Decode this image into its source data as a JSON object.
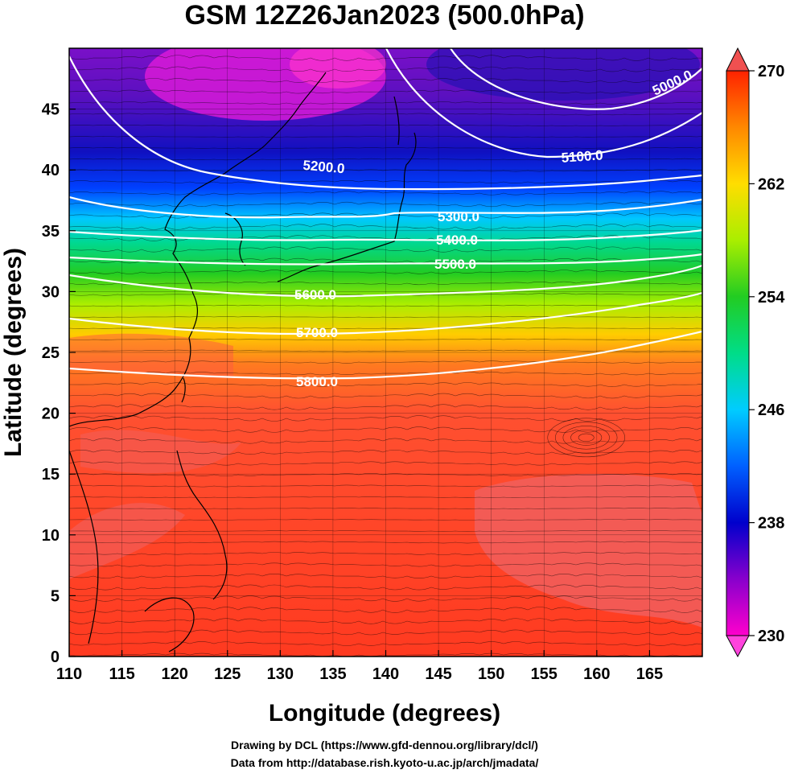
{
  "title": "GSM 12Z26Jan2023 (500.0hPa)",
  "x_axis": {
    "label": "Longitude (degrees)",
    "range": [
      110,
      170
    ],
    "ticks": [
      "110",
      "115",
      "120",
      "125",
      "130",
      "135",
      "140",
      "145",
      "150",
      "155",
      "160",
      "165"
    ]
  },
  "y_axis": {
    "label": "Latitude  (degrees)",
    "range": [
      0,
      50
    ],
    "ticks": [
      "0",
      "5",
      "10",
      "15",
      "20",
      "25",
      "30",
      "35",
      "40",
      "45"
    ]
  },
  "colorbar": {
    "range": [
      230,
      270
    ],
    "ticks": [
      "230",
      "238",
      "246",
      "254",
      "262",
      "270"
    ],
    "colors": [
      "#ff00cc",
      "#8800cc",
      "#0000cc",
      "#0060ff",
      "#00ccff",
      "#00dd88",
      "#22cc22",
      "#aaee00",
      "#ffdd00",
      "#ff8800",
      "#ff2200"
    ]
  },
  "contours": [
    {
      "label": "5000.0"
    },
    {
      "label": "5100.0"
    },
    {
      "label": "5200.0"
    },
    {
      "label": "5300.0"
    },
    {
      "label": "5400.0"
    },
    {
      "label": "5500.0"
    },
    {
      "label": "5600.0"
    },
    {
      "label": "5700.0"
    },
    {
      "label": "5800.0"
    }
  ],
  "credits": {
    "line1": "Drawing by DCL (https://www.gfd-dennou.org/library/dcl/)",
    "line2": "Data from http://database.rish.kyoto-u.ac.jp/arch/jmadata/"
  }
}
